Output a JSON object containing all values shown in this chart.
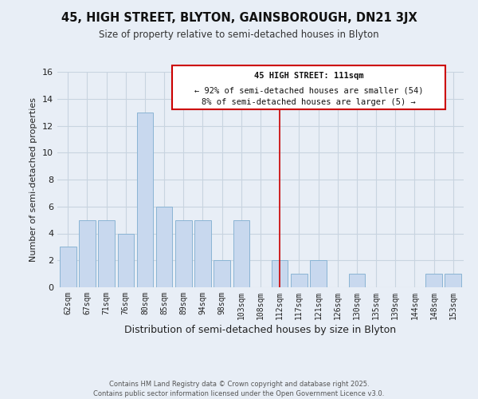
{
  "title": "45, HIGH STREET, BLYTON, GAINSBOROUGH, DN21 3JX",
  "subtitle": "Size of property relative to semi-detached houses in Blyton",
  "xlabel": "Distribution of semi-detached houses by size in Blyton",
  "ylabel": "Number of semi-detached properties",
  "categories": [
    "62sqm",
    "67sqm",
    "71sqm",
    "76sqm",
    "80sqm",
    "85sqm",
    "89sqm",
    "94sqm",
    "98sqm",
    "103sqm",
    "108sqm",
    "112sqm",
    "117sqm",
    "121sqm",
    "126sqm",
    "130sqm",
    "135sqm",
    "139sqm",
    "144sqm",
    "148sqm",
    "153sqm"
  ],
  "values": [
    3,
    5,
    5,
    4,
    13,
    6,
    5,
    5,
    2,
    5,
    0,
    2,
    1,
    2,
    0,
    1,
    0,
    0,
    0,
    1,
    1
  ],
  "bar_color": "#c8d8ee",
  "bar_edge_color": "#8ab4d4",
  "grid_color": "#c8d4e0",
  "background_color": "#e8eef6",
  "vline_x": 11,
  "vline_color": "#cc0000",
  "annotation_title": "45 HIGH STREET: 111sqm",
  "annotation_line1": "← 92% of semi-detached houses are smaller (54)",
  "annotation_line2": "8% of semi-detached houses are larger (5) →",
  "footer1": "Contains HM Land Registry data © Crown copyright and database right 2025.",
  "footer2": "Contains public sector information licensed under the Open Government Licence v3.0.",
  "ylim": [
    0,
    16
  ],
  "yticks": [
    0,
    2,
    4,
    6,
    8,
    10,
    12,
    14,
    16
  ]
}
